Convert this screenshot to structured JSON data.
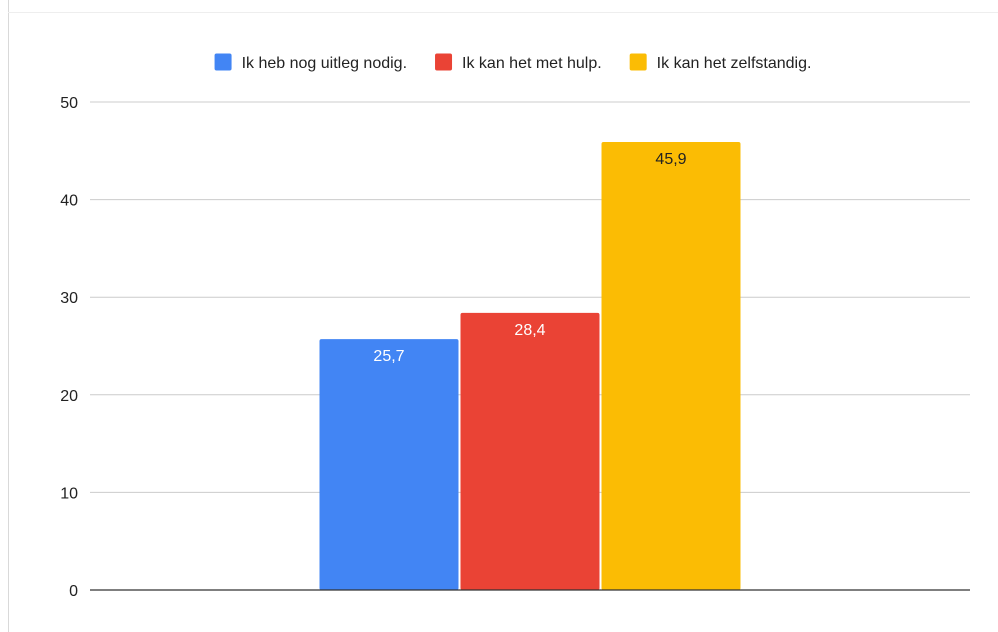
{
  "chart_data": {
    "type": "bar",
    "title": "",
    "xlabel": "",
    "ylabel": "",
    "categories": [
      ""
    ],
    "series": [
      {
        "name": "Ik heb nog uitleg nodig.",
        "values": [
          25.7
        ],
        "color": "#4285F4",
        "label_color": "#ffffff"
      },
      {
        "name": "Ik kan het met hulp.",
        "values": [
          28.4
        ],
        "color": "#EA4335",
        "label_color": "#ffffff"
      },
      {
        "name": "Ik kan het zelfstandig.",
        "values": [
          45.9
        ],
        "color": "#FBBC04",
        "label_color": "#222222"
      }
    ],
    "value_labels": [
      "25,7",
      "28,4",
      "45,9"
    ],
    "ylim": [
      0,
      50
    ],
    "yticks": [
      0,
      10,
      20,
      30,
      40,
      50
    ],
    "grid": true,
    "legend_position": "top"
  }
}
